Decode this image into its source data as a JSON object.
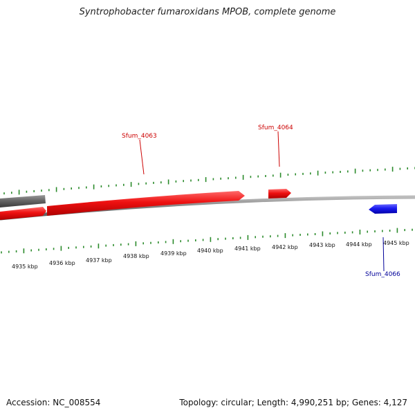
{
  "title": "Syntrophobacter fumaroxidans MPOB, complete genome",
  "footer": {
    "accession": "Accession: NC_008554",
    "summary": "Topology: circular; Length: 4,990,251 bp; Genes: 4,127"
  },
  "colors": {
    "forward_gene": "#ee1111",
    "reverse_gene": "#1a1af0",
    "other_feature": "#666666",
    "backbone": "#888888",
    "ticks": "#2a8a2a",
    "forward_label": "#cc0000",
    "reverse_label": "#000099"
  },
  "scale": {
    "unit": "kbp",
    "labels": [
      "4935 kbp",
      "4936 kbp",
      "4937 kbp",
      "4938 kbp",
      "4939 kbp",
      "4940 kbp",
      "4941 kbp",
      "4942 kbp",
      "4943 kbp",
      "4944 kbp",
      "4945 kbp"
    ]
  },
  "genes": [
    {
      "label": "Sfum_4063",
      "strand": "forward"
    },
    {
      "label": "Sfum_4064",
      "strand": "forward"
    },
    {
      "label": "Sfum_4066",
      "strand": "reverse"
    }
  ]
}
